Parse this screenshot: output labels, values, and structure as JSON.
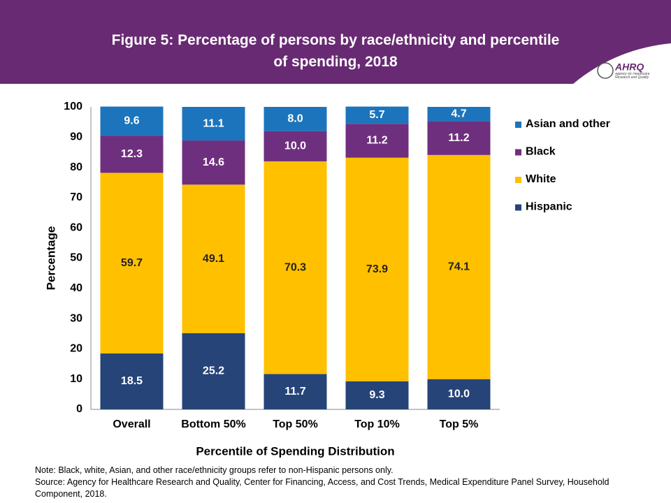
{
  "logo": {
    "name": "AHRQ",
    "tagline": "Agency for Healthcare Research and Quality"
  },
  "chart_data": {
    "type": "stacked-bar",
    "title": "Figure 5: Percentage of persons by race/ethnicity and percentile of spending, 2018",
    "x_label": "Percentile of Spending Distribution",
    "y_label": "Percentage",
    "categories": [
      "Overall",
      "Bottom 50%",
      "Top 50%",
      "Top 10%",
      "Top 5%"
    ],
    "series": [
      {
        "name": "Hispanic",
        "color": "#264478",
        "label_color": "#ffffff",
        "values": [
          18.5,
          25.2,
          11.7,
          9.3,
          10
        ],
        "value_labels": [
          "18.5",
          "25.2",
          "11.7",
          "9.3",
          "10.0"
        ]
      },
      {
        "name": "White",
        "color": "#ffc000",
        "label_color": "#222222",
        "values": [
          59.7,
          49.1,
          70.3,
          73.9,
          74.1
        ],
        "value_labels": [
          "59.7",
          "49.1",
          "70.3",
          "73.9",
          "74.1"
        ]
      },
      {
        "name": "Black",
        "color": "#6f2f7f",
        "label_color": "#ffffff",
        "values": [
          12.3,
          14.6,
          10,
          11.2,
          11.2
        ],
        "value_labels": [
          "12.3",
          "14.6",
          "10.0",
          "11.2",
          "11.2"
        ]
      },
      {
        "name": "Asian and other",
        "color": "#1c75bc",
        "label_color": "#ffffff",
        "values": [
          9.6,
          11.1,
          8,
          5.7,
          4.7
        ],
        "value_labels": [
          "9.6",
          "11.1",
          "8.0",
          "5.7",
          "4.7"
        ]
      }
    ],
    "ylim": [
      0,
      100
    ],
    "yticks": [
      0,
      10,
      20,
      30,
      40,
      50,
      60,
      70,
      80,
      90,
      100
    ],
    "grid": false,
    "legend": "right",
    "notes": [
      "Note: Black, white, Asian, and other race/ethnicity groups refer to non-Hispanic persons only.",
      "Source: Agency for Healthcare Research and Quality, Center for Financing, Access, and Cost Trends, Medical Expenditure Panel Survey, Household Component, 2018."
    ]
  }
}
